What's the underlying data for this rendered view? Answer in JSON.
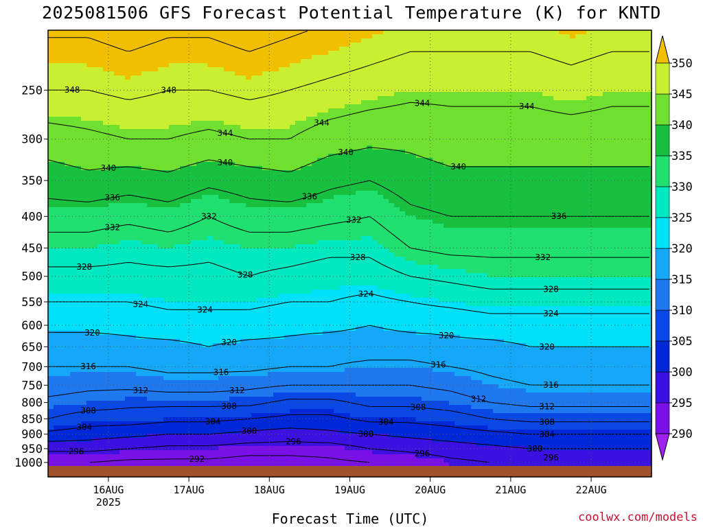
{
  "chart_data": {
    "type": "heatmap",
    "title": "2025081506 GFS Forecast Potential Temperature (K) for KNTD",
    "xlabel": "Forecast Time (UTC)",
    "ylabel": "",
    "credit": "coolwx.com/models",
    "x_ticks": [
      "16AUG",
      "17AUG",
      "18AUG",
      "19AUG",
      "20AUG",
      "21AUG",
      "22AUG"
    ],
    "x_year": "2025",
    "x_range_days": [
      15.25,
      22.75
    ],
    "y_ticks": [
      250,
      300,
      350,
      400,
      450,
      500,
      550,
      600,
      650,
      700,
      750,
      800,
      850,
      900,
      950,
      1000
    ],
    "y_range_hpa": [
      200,
      1013
    ],
    "colorbar": {
      "levels": [
        290,
        295,
        300,
        305,
        310,
        315,
        320,
        325,
        330,
        335,
        340,
        345,
        350
      ],
      "labels": [
        "290",
        "295",
        "300",
        "305",
        "310",
        "315",
        "320",
        "325",
        "330",
        "335",
        "340",
        "345",
        "350"
      ],
      "colors": [
        "#a020f0",
        "#7a10e8",
        "#3c10e0",
        "#0028d8",
        "#0a48e6",
        "#1e78f0",
        "#16a8f8",
        "#00e0f8",
        "#00e8c0",
        "#20e070",
        "#18c040",
        "#70e030",
        "#c8f030",
        "#ffff00",
        "#f0c000"
      ]
    },
    "contour_labels": [
      "348",
      "348",
      "344",
      "344",
      "344",
      "344",
      "340",
      "340",
      "340",
      "340",
      "336",
      "336",
      "336",
      "332",
      "332",
      "332",
      "332",
      "328",
      "328",
      "328",
      "328",
      "324",
      "324",
      "324",
      "324",
      "320",
      "320",
      "320",
      "320",
      "316",
      "316",
      "316",
      "316",
      "312",
      "312",
      "312",
      "312",
      "308",
      "308",
      "308",
      "308",
      "304",
      "304",
      "304",
      "304",
      "300",
      "300",
      "300",
      "296",
      "296",
      "296",
      "296",
      "292"
    ],
    "profiles": [
      {
        "day": 15.25,
        "theta": [
          348,
          342,
          338,
          334,
          330,
          327,
          324,
          321,
          318,
          316,
          314,
          311,
          308,
          303,
          297,
          292
        ]
      },
      {
        "day": 15.75,
        "theta": [
          348,
          343,
          339,
          334,
          330,
          327,
          324,
          321,
          318,
          316,
          313,
          310,
          306,
          302,
          297,
          292
        ]
      },
      {
        "day": 16.25,
        "theta": [
          349,
          344,
          338,
          333,
          329,
          327,
          324,
          321,
          319,
          316,
          313,
          309,
          306,
          301,
          296,
          291
        ]
      },
      {
        "day": 16.75,
        "theta": [
          348,
          344,
          339,
          334,
          330,
          327,
          325,
          322,
          319,
          317,
          314,
          309,
          305,
          300,
          295,
          291
        ]
      },
      {
        "day": 17.25,
        "theta": [
          348,
          343,
          337,
          332,
          329,
          327,
          325,
          322,
          320,
          317,
          314,
          309,
          305,
          300,
          295,
          291
        ]
      },
      {
        "day": 17.75,
        "theta": [
          349,
          344,
          338,
          334,
          330,
          328,
          325,
          322,
          319,
          317,
          313,
          309,
          304,
          299,
          294,
          290
        ]
      },
      {
        "day": 18.25,
        "theta": [
          348,
          344,
          339,
          334,
          330,
          327,
          324,
          321,
          319,
          316,
          312,
          307,
          303,
          298,
          294,
          290
        ]
      },
      {
        "day": 18.75,
        "theta": [
          347,
          342,
          337,
          333,
          329,
          326,
          324,
          321,
          318,
          316,
          312,
          307,
          303,
          299,
          294,
          291
        ]
      },
      {
        "day": 19.25,
        "theta": [
          346,
          341,
          336,
          332,
          329,
          326,
          323,
          320,
          318,
          315,
          312,
          309,
          305,
          300,
          296,
          292
        ]
      },
      {
        "day": 19.75,
        "theta": [
          345,
          341,
          338,
          335,
          332,
          328,
          324,
          321,
          318,
          315,
          312,
          309,
          305,
          301,
          297,
          293
        ]
      },
      {
        "day": 20.25,
        "theta": [
          345,
          342,
          339,
          336,
          333,
          329,
          325,
          321,
          319,
          316,
          313,
          310,
          306,
          302,
          298,
          295
        ]
      },
      {
        "day": 20.75,
        "theta": [
          345,
          342,
          339,
          336,
          333,
          330,
          326,
          322,
          319,
          317,
          315,
          312,
          308,
          303,
          299,
          296
        ]
      },
      {
        "day": 21.25,
        "theta": [
          345,
          342,
          339,
          336,
          333,
          330,
          326,
          322,
          320,
          318,
          316,
          313,
          309,
          304,
          300,
          297
        ]
      },
      {
        "day": 21.75,
        "theta": [
          346,
          342,
          339,
          336,
          333,
          330,
          326,
          322,
          320,
          318,
          316,
          313,
          309,
          304,
          300,
          297
        ]
      },
      {
        "day": 22.25,
        "theta": [
          345,
          342,
          339,
          336,
          333,
          330,
          326,
          322,
          320,
          318,
          316,
          313,
          309,
          304,
          300,
          297
        ]
      },
      {
        "day": 22.75,
        "theta": [
          345,
          342,
          339,
          336,
          333,
          330,
          326,
          322,
          320,
          318,
          316,
          313,
          309,
          304,
          300,
          297
        ]
      }
    ]
  }
}
